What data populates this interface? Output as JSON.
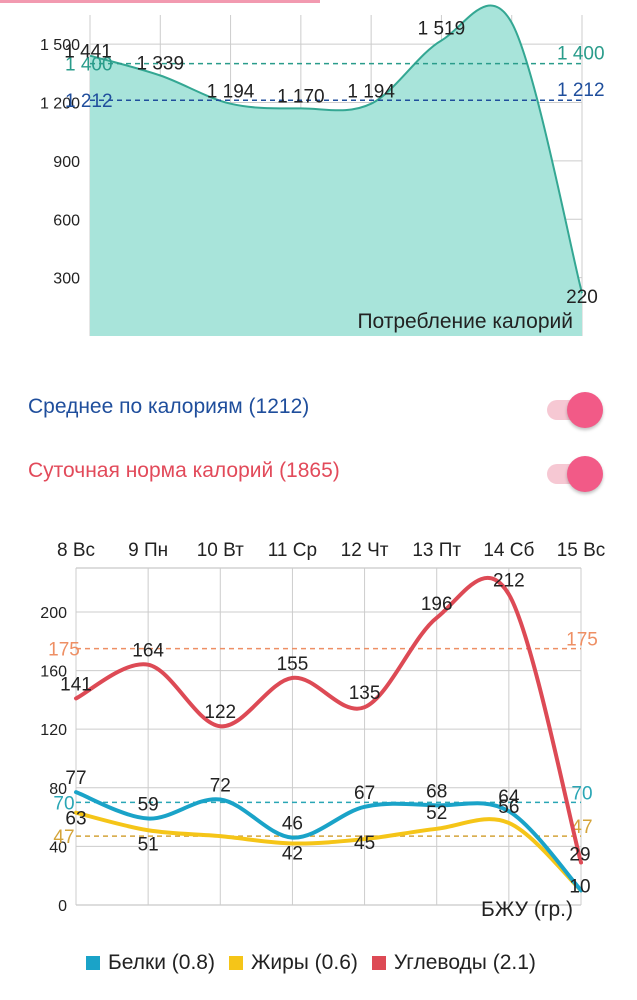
{
  "calorie_chart": {
    "colors": {
      "fill": "#a8e4da",
      "line": "#34a793",
      "avg_line": "#2a9c8b",
      "norm_line": "#b5b5b5",
      "avg_label": "#1f4e9c",
      "grid": "#cccccc"
    },
    "chart_data": {
      "type": "area",
      "title": "Потребление калорий",
      "x": [
        8,
        9,
        10,
        11,
        12,
        13,
        14,
        15
      ],
      "values": [
        1441,
        1339,
        1194,
        1170,
        1194,
        1519,
        1610,
        220
      ],
      "value_labels": [
        "1 441",
        "1 339",
        "1 194",
        "1 170",
        "1 194",
        "1 519",
        "",
        "220"
      ],
      "ylim": [
        0,
        1650
      ],
      "yticks": [
        300,
        600,
        900,
        1200,
        1500
      ],
      "ytick_labels": [
        "300",
        "600",
        "900",
        "1 200",
        "1 500"
      ],
      "reference_lines": [
        {
          "value": 1400,
          "label": "1 400",
          "style": "dashed",
          "color": "#2a9c8b"
        },
        {
          "value": 1212,
          "label": "1 212",
          "style": "dashed",
          "color": "#1f4e9c"
        }
      ],
      "grid": true
    }
  },
  "toggles": [
    {
      "label": "Среднее по калориям (1212)",
      "color": "#1f4e9c",
      "on": true
    },
    {
      "label": "Суточная норма калорий (1865)",
      "color": "#e24a5a",
      "on": true
    }
  ],
  "macro_chart": {
    "chart_data": {
      "type": "line",
      "title": "БЖУ (гр.)",
      "categories": [
        "8 Вс",
        "9 Пн",
        "10 Вт",
        "11 Ср",
        "12 Чт",
        "13 Пт",
        "14 Сб",
        "15 Вс"
      ],
      "ylim": [
        0,
        230
      ],
      "yticks": [
        0,
        40,
        80,
        120,
        160,
        200
      ],
      "series": [
        {
          "name": "Белки (0.8)",
          "color": "#1aa3c8",
          "values": [
            77,
            59,
            72,
            46,
            67,
            68,
            64,
            10
          ]
        },
        {
          "name": "Жиры (0.6)",
          "color": "#f5c518",
          "values": [
            63,
            51,
            47,
            42,
            45,
            52,
            56,
            10
          ]
        },
        {
          "name": "Углеводы (2.1)",
          "color": "#dd4a55",
          "values": [
            141,
            164,
            122,
            155,
            135,
            196,
            212,
            29
          ]
        }
      ],
      "reference_lines": [
        {
          "value": 175,
          "label": "175",
          "color": "#ee8f64"
        },
        {
          "value": 70,
          "label": "70",
          "color": "#2aa6b5"
        },
        {
          "value": 47,
          "label": "47",
          "color": "#d4a43a"
        }
      ],
      "grid": true,
      "legend": "bottom"
    }
  }
}
